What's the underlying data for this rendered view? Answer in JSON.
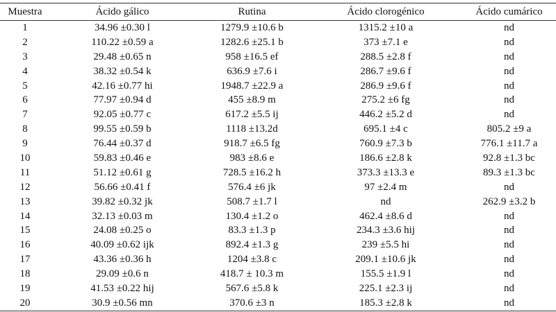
{
  "table": {
    "header": [
      "Muestra",
      "Ácido gálico",
      "Rutina",
      "Ácido clorogénico",
      "Ácido cumárico"
    ],
    "rows": [
      [
        "1",
        "34.96 ±0.30 l",
        "1279.9 ±10.6 b",
        "1315.2 ±10 a",
        "nd"
      ],
      [
        "2",
        "110.22 ±0.59 a",
        "1282.6 ±25.1 b",
        "373 ±7.1 e",
        "nd"
      ],
      [
        "3",
        "29.48 ±0.65 n",
        "958 ±16.5 ef",
        "288.5 ±2.8 f",
        "nd"
      ],
      [
        "4",
        "38.32 ±0.54 k",
        "636.9 ±7.6 i",
        "286.7 ±9.6 f",
        "nd"
      ],
      [
        "5",
        "42.16 ±0.77 hi",
        "1948.7 ±22.9 a",
        "286.9 ±9.6 f",
        "nd"
      ],
      [
        "6",
        "77.97 ±0.94 d",
        "455 ±8.9 m",
        "275.2 ±6 fg",
        "nd"
      ],
      [
        "7",
        "92.05 ±0.77 c",
        "617.2 ±5.5 ij",
        "446.2 ±5.2 d",
        "nd"
      ],
      [
        "8",
        "99.55 ±0.59 b",
        "1118 ±13.2d",
        "695.1 ±4 c",
        "805.2 ±9 a"
      ],
      [
        "9",
        "76.44 ±0.37 d",
        "918.7 ±6.5 fg",
        "760.9 ±7.3 b",
        "776.1 ±11.7 a"
      ],
      [
        "10",
        "59.83 ±0.46 e",
        "983 ±8.6 e",
        "186.6 ±2.8 k",
        "92.8 ±1.3 bc"
      ],
      [
        "11",
        "51.12 ±0.61 g",
        "728.5 ±16.2 h",
        "373.3 ±13.3 e",
        "89.3 ±1.3 bc"
      ],
      [
        "12",
        "56.66 ±0.41 f",
        "576.4 ±6 jk",
        "97 ±2.4 m",
        "nd"
      ],
      [
        "13",
        "39.82 ±0.32 jk",
        "508.7 ±1.7 l",
        "nd",
        "262.9 ±3.2 b"
      ],
      [
        "14",
        "32.13 ±0.03 m",
        "130.4 ±1.2 o",
        "462.4 ±8.6 d",
        "nd"
      ],
      [
        "15",
        "24.08 ±0.25 o",
        "83.3 ±1.3 p",
        "234.3 ±3.6 hij",
        "nd"
      ],
      [
        "16",
        "40.09 ±0.62 ijk",
        "892.4 ±1.3 g",
        "239 ±5.5 hi",
        "nd"
      ],
      [
        "17",
        "43.36 ±0.36 h",
        "1204 ±3.8 c",
        "209.1 ±10.6 jk",
        "nd"
      ],
      [
        "18",
        "29.09 ±0.6 n",
        "418.7 ± 10.3 m",
        "155.5 ±1.9 l",
        "nd"
      ],
      [
        "19",
        "41.53 ±0.22 hij",
        "567.6 ±5.8 k",
        "225.1 ±2.3 ij",
        "nd"
      ],
      [
        "20",
        "30.9 ±0.56 mn",
        "370.6 ±3 n",
        "185.3 ±2.8 k",
        "nd"
      ]
    ]
  }
}
